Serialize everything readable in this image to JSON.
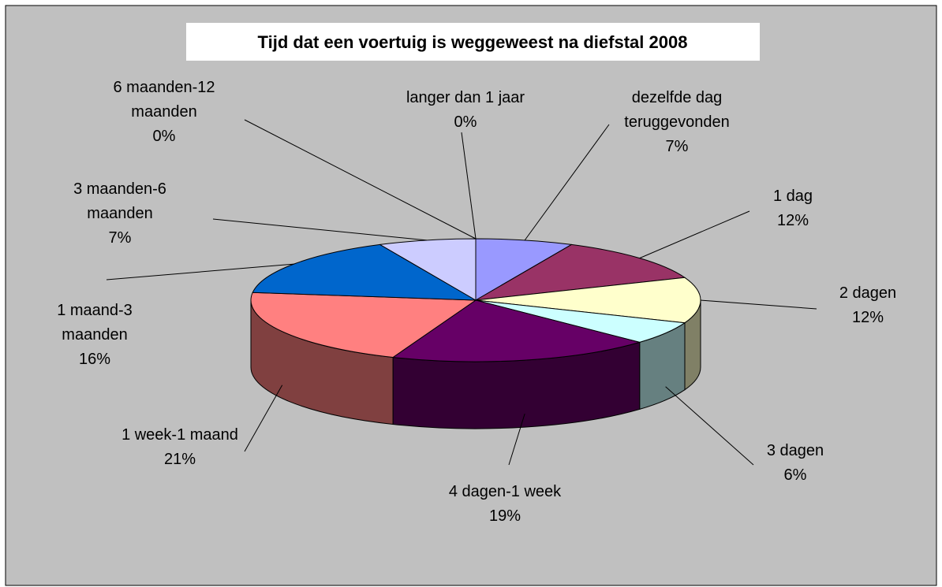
{
  "chart_data": {
    "type": "pie3d",
    "title": "Tijd dat een voertuig is weggeweest na diefstal 2008",
    "categories": [
      "dezelfde dag teruggevonden",
      "1 dag",
      "2 dagen",
      "3 dagen",
      "4 dagen-1 week",
      "1 week-1 maand",
      "1 maand-3 maanden",
      "3 maanden-6 maanden",
      "6 maanden-12 maanden",
      "langer dan 1 jaar"
    ],
    "values": [
      7,
      12,
      12,
      6,
      19,
      21,
      16,
      7,
      0,
      0
    ],
    "value_labels": [
      "7%",
      "12%",
      "12%",
      "6%",
      "19%",
      "21%",
      "16%",
      "7%",
      "0%",
      "0%"
    ],
    "colors": [
      "#9999ff",
      "#993366",
      "#ffffcc",
      "#ccffff",
      "#660066",
      "#ff8080",
      "#0066cc",
      "#ccccff",
      "#000080",
      "#000080"
    ]
  }
}
